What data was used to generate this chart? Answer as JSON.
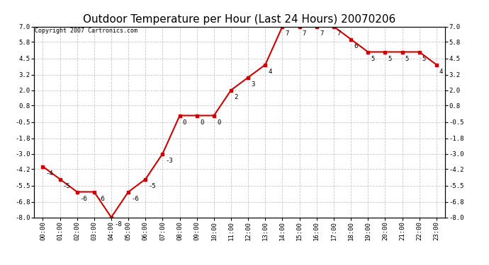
{
  "title": "Outdoor Temperature per Hour (Last 24 Hours) 20070206",
  "copyright": "Copyright 2007 Cartronics.com",
  "hours": [
    "00:00",
    "01:00",
    "02:00",
    "03:00",
    "04:00",
    "05:00",
    "06:00",
    "07:00",
    "08:00",
    "09:00",
    "10:00",
    "11:00",
    "12:00",
    "13:00",
    "14:00",
    "15:00",
    "16:00",
    "17:00",
    "18:00",
    "19:00",
    "20:00",
    "21:00",
    "22:00",
    "23:00"
  ],
  "values": [
    -4,
    -5,
    -6,
    -6,
    -8,
    -6,
    -5,
    -3,
    0,
    0,
    0,
    2,
    3,
    4,
    7,
    7,
    7,
    7,
    6,
    5,
    5,
    5,
    5,
    4
  ],
  "yticks": [
    7.0,
    5.8,
    4.5,
    3.2,
    2.0,
    0.8,
    -0.5,
    -1.8,
    -3.0,
    -4.2,
    -5.5,
    -6.8,
    -8.0
  ],
  "ymin": -8.0,
  "ymax": 7.0,
  "line_color": "#cc0000",
  "marker_color": "#cc0000",
  "bg_color": "#ffffff",
  "grid_color": "#c8c8c8",
  "title_fontsize": 11,
  "tick_fontsize": 6.5,
  "copyright_fontsize": 6
}
